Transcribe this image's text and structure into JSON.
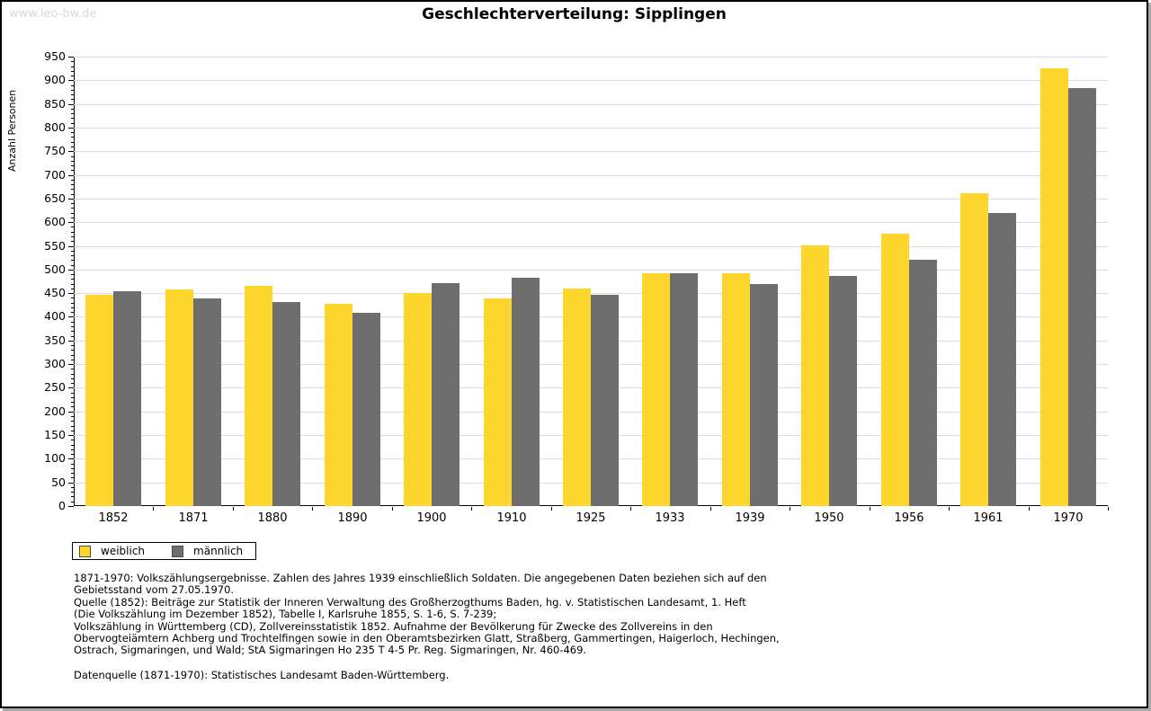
{
  "watermark": "www.leo-bw.de",
  "title": "Geschlechterverteilung: Sipplingen",
  "chart_data": {
    "type": "bar",
    "title": "Geschlechterverteilung: Sipplingen",
    "xlabel": "",
    "ylabel": "Anzahl Personen",
    "ylim": [
      0,
      950
    ],
    "y_tick_step": 50,
    "y_minor_tick_step": 10,
    "grid": true,
    "legend_position": "bottom-left",
    "categories": [
      "1852",
      "1871",
      "1880",
      "1890",
      "1900",
      "1910",
      "1925",
      "1933",
      "1939",
      "1950",
      "1956",
      "1961",
      "1970"
    ],
    "series": [
      {
        "name": "weiblich",
        "color": "#fdd52d",
        "values": [
          446,
          457,
          466,
          427,
          450,
          438,
          459,
          492,
          493,
          551,
          575,
          661,
          925
        ]
      },
      {
        "name": "männlich",
        "color": "#6e6e6e",
        "values": [
          454,
          439,
          431,
          409,
          471,
          483,
          446,
          492,
          470,
          486,
          521,
          619,
          883
        ]
      }
    ]
  },
  "legend": {
    "items": [
      {
        "label": "weiblich",
        "color": "#fdd52d"
      },
      {
        "label": "männlich",
        "color": "#6e6e6e"
      }
    ]
  },
  "colors": {
    "grid": "#dcdcdc",
    "axis": "#000000",
    "watermark": "#d9d9d9",
    "frame_shadow": "#a9a9a9"
  },
  "footnotes": [
    "1871-1970: Volkszählungsergebnisse. Zahlen des Jahres 1939 einschließlich Soldaten. Die angegebenen Daten beziehen sich auf den",
    "Gebietsstand vom 27.05.1970.",
    "Quelle (1852): Beiträge zur Statistik der Inneren Verwaltung des Großherzogthums Baden, hg. v. Statistischen Landesamt, 1. Heft",
    "(Die Volkszählung im Dezember 1852), Tabelle I, Karlsruhe 1855, S. 1-6, S. 7-239;",
    "Volkszählung in Württemberg (CD), Zollvereinsstatistik 1852. Aufnahme der Bevölkerung für Zwecke des Zollvereins in den",
    "Obervogteiämtern Achberg und Trochtelfingen sowie in den Oberamtsbezirken Glatt, Straßberg, Gammertingen, Haigerloch, Hechingen,",
    "Ostrach, Sigmaringen, und Wald; StA Sigmaringen Ho 235 T 4-5 Pr. Reg. Sigmaringen, Nr. 460-469."
  ],
  "datasource": "Datenquelle (1871-1970): Statistisches Landesamt Baden-Württemberg."
}
